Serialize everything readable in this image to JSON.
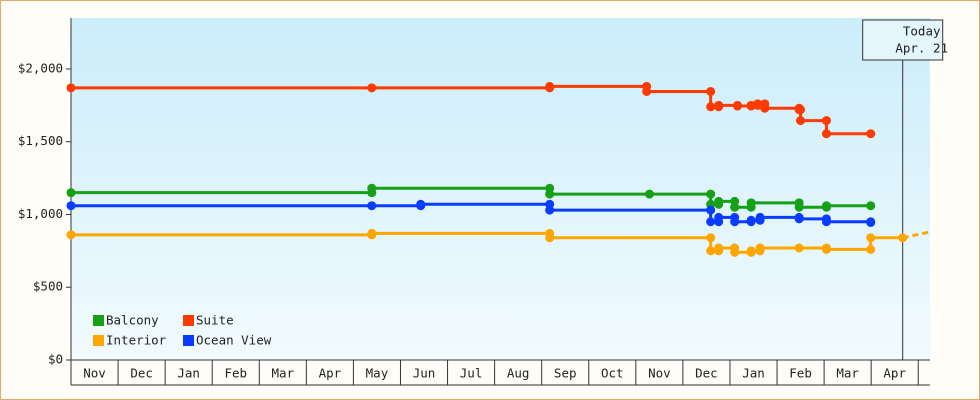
{
  "chart_data": {
    "type": "step-line",
    "xlim": [
      0,
      18.25
    ],
    "xticks": [
      {
        "value": 0,
        "label": "Nov"
      },
      {
        "value": 1,
        "label": "Dec"
      },
      {
        "value": 2,
        "label": "Jan"
      },
      {
        "value": 3,
        "label": "Feb"
      },
      {
        "value": 4,
        "label": "Mar"
      },
      {
        "value": 5,
        "label": "Apr"
      },
      {
        "value": 6,
        "label": "May"
      },
      {
        "value": 7,
        "label": "Jun"
      },
      {
        "value": 8,
        "label": "Jul"
      },
      {
        "value": 9,
        "label": "Aug"
      },
      {
        "value": 10,
        "label": "Sep"
      },
      {
        "value": 11,
        "label": "Oct"
      },
      {
        "value": 12,
        "label": "Nov"
      },
      {
        "value": 13,
        "label": "Dec"
      },
      {
        "value": 14,
        "label": "Jan"
      },
      {
        "value": 15,
        "label": "Feb"
      },
      {
        "value": 16,
        "label": "Mar"
      },
      {
        "value": 17,
        "label": "Apr"
      }
    ],
    "ylim": [
      0,
      2350
    ],
    "yticks": [
      {
        "value": 0,
        "label": "$0"
      },
      {
        "value": 500,
        "label": "$500"
      },
      {
        "value": 1000,
        "label": "$1,000"
      },
      {
        "value": 1500,
        "label": "$1,500"
      },
      {
        "value": 2000,
        "label": "$2,000"
      }
    ],
    "series": [
      {
        "name": "Balcony",
        "color": "#16a016",
        "x": [
          0,
          6.39,
          10.17,
          12.29,
          13.59,
          13.76,
          14.1,
          14.45,
          15.47,
          16.05,
          16.99
        ],
        "values": [
          1150,
          1180,
          1140,
          1140,
          1070,
          1090,
          1050,
          1080,
          1050,
          1060,
          1060
        ]
      },
      {
        "name": "Suite",
        "color": "#ff3a00",
        "x": [
          0,
          6.39,
          10.17,
          12.23,
          13.59,
          13.76,
          14.16,
          14.45,
          14.59,
          14.74,
          15.47,
          15.5,
          16.05,
          16.99
        ],
        "values": [
          1870,
          1870,
          1880,
          1845,
          1740,
          1750,
          1745,
          1750,
          1760,
          1730,
          1720,
          1645,
          1555,
          1555
        ]
      },
      {
        "name": "Interior",
        "color": "#ffa500",
        "x": [
          0,
          6.39,
          10.17,
          13.59,
          13.76,
          14.1,
          14.45,
          14.64,
          15.47,
          16.05,
          16.99,
          17.67
        ],
        "values": [
          860,
          870,
          840,
          750,
          770,
          740,
          750,
          770,
          770,
          760,
          840,
          840
        ],
        "projection": {
          "x": [
            17.67,
            18.25
          ],
          "values": [
            840,
            880
          ]
        }
      },
      {
        "name": "Ocean View",
        "color": "#0a3cff",
        "x": [
          0,
          6.39,
          7.43,
          10.17,
          13.59,
          13.76,
          14.1,
          14.45,
          14.64,
          15.47,
          16.05,
          16.99
        ],
        "values": [
          1060,
          1060,
          1070,
          1030,
          950,
          980,
          950,
          960,
          980,
          970,
          950,
          945
        ]
      }
    ],
    "annotation": {
      "x": 17.67,
      "lines": [
        "Today",
        "Apr. 21"
      ]
    }
  }
}
